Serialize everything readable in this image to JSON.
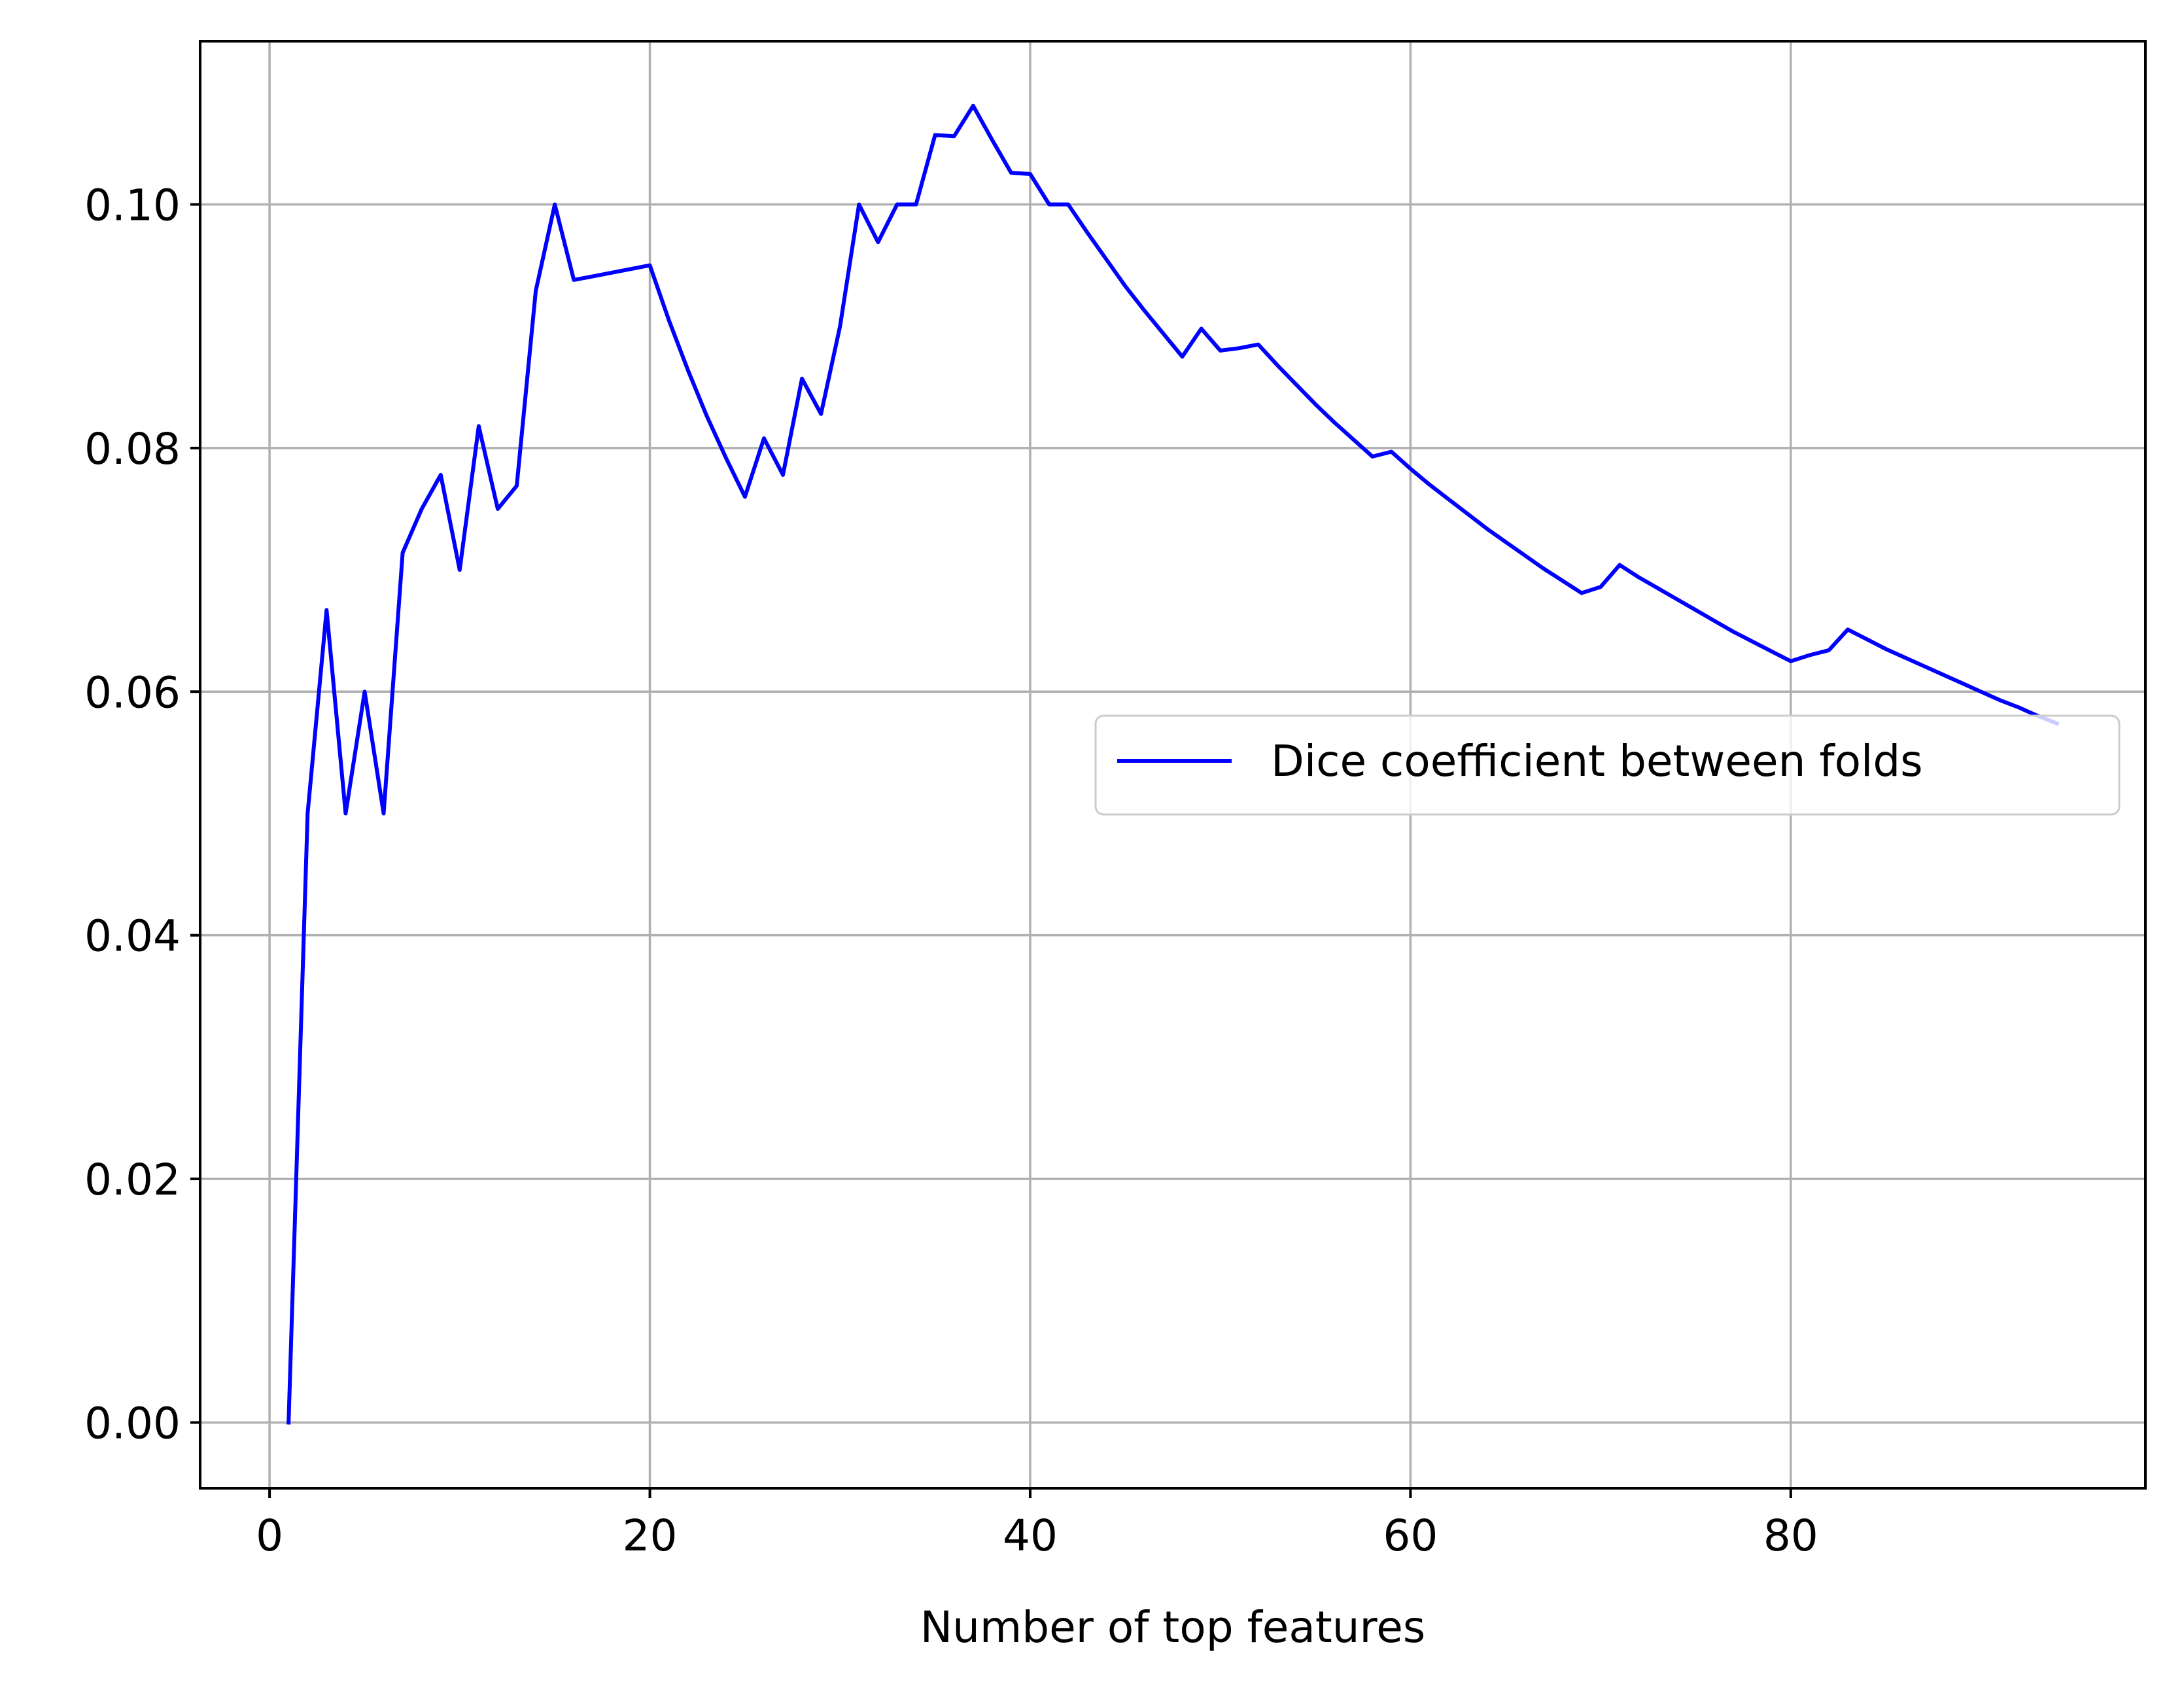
{
  "chart_data": {
    "type": "line",
    "title": "",
    "xlabel": "Number of top features",
    "ylabel": "",
    "xlim": [
      -3.65,
      98.65
    ],
    "ylim": [
      -0.0054,
      0.1134
    ],
    "grid": true,
    "legend_position": "center-right",
    "x_ticks": [
      0,
      20,
      40,
      60,
      80
    ],
    "x_tick_labels": [
      "0",
      "20",
      "40",
      "60",
      "80"
    ],
    "y_ticks": [
      0.0,
      0.02,
      0.04,
      0.06,
      0.08,
      0.1
    ],
    "y_tick_labels": [
      "0.00",
      "0.02",
      "0.04",
      "0.06",
      "0.08",
      "0.10"
    ],
    "series": [
      {
        "name": "Dice coefficient between folds",
        "color": "#0000ff",
        "x": [
          1,
          2,
          3,
          4,
          5,
          6,
          7,
          8,
          9,
          10,
          11,
          12,
          13,
          14,
          15,
          16,
          17,
          18,
          19,
          20,
          21,
          22,
          23,
          24,
          25,
          26,
          27,
          28,
          29,
          30,
          31,
          32,
          33,
          34,
          35,
          36,
          37,
          38,
          39,
          40,
          41,
          42,
          43,
          44,
          45,
          46,
          47,
          48,
          49,
          50,
          51,
          52,
          53,
          54,
          55,
          56,
          57,
          58,
          59,
          60,
          61,
          62,
          63,
          64,
          65,
          66,
          67,
          68,
          69,
          70,
          71,
          72,
          73,
          74,
          75,
          76,
          77,
          78,
          79,
          80,
          81,
          82,
          83,
          84,
          85,
          86,
          87,
          88,
          89,
          90,
          91,
          92,
          93,
          94
        ],
        "y": [
          0.0,
          0.05,
          0.0667,
          0.05,
          0.06,
          0.05,
          0.0714,
          0.075,
          0.0778,
          0.07,
          0.0818,
          0.075,
          0.0769,
          0.0929,
          0.1,
          0.0938,
          0.0941,
          0.0944,
          0.0947,
          0.095,
          0.0905,
          0.0864,
          0.0826,
          0.0792,
          0.076,
          0.0808,
          0.0778,
          0.0857,
          0.0828,
          0.09,
          0.1,
          0.0969,
          0.1,
          0.1,
          0.1057,
          0.1056,
          0.1081,
          0.1053,
          0.1026,
          0.1025,
          0.1,
          0.1,
          0.0977,
          0.0955,
          0.0933,
          0.0913,
          0.0894,
          0.0875,
          0.0898,
          0.088,
          0.0882,
          0.0885,
          0.0868,
          0.0852,
          0.0836,
          0.0821,
          0.0807,
          0.0793,
          0.0797,
          0.0783,
          0.077,
          0.0758,
          0.0746,
          0.0734,
          0.0723,
          0.0712,
          0.0701,
          0.0691,
          0.0681,
          0.0686,
          0.0704,
          0.0694,
          0.0685,
          0.0676,
          0.0667,
          0.0658,
          0.0649,
          0.0641,
          0.0633,
          0.0625,
          0.063,
          0.0634,
          0.0651,
          0.0643,
          0.0635,
          0.0628,
          0.0621,
          0.0614,
          0.0607,
          0.06,
          0.0593,
          0.0587,
          0.058,
          0.0574
        ]
      }
    ]
  }
}
